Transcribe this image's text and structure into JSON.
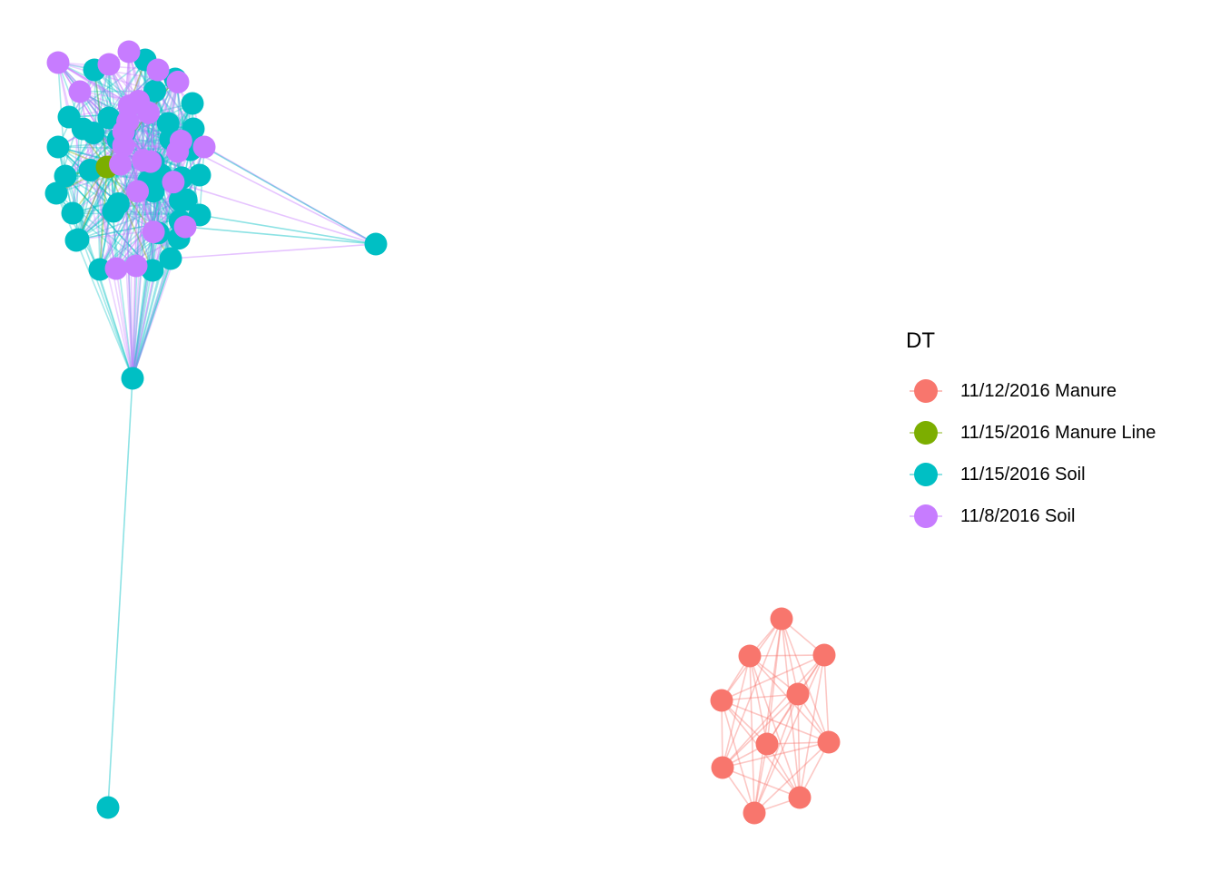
{
  "legend": {
    "title": "DT",
    "items": [
      {
        "label": "11/12/2016 Manure",
        "color": "#F8766D"
      },
      {
        "label": "11/15/2016 Manure Line",
        "color": "#7CAE00"
      },
      {
        "label": "11/15/2016 Soil",
        "color": "#00BFC4"
      },
      {
        "label": "11/8/2016 Soil",
        "color": "#C77CFF"
      }
    ]
  },
  "groups": {
    "manure": {
      "legend_index": 0,
      "node_count": 10
    },
    "soil_cluster": {
      "teal_count": 40,
      "purple_count": 24,
      "green_count": 1
    },
    "soil_outliers": {
      "teal_count": 3
    }
  }
}
